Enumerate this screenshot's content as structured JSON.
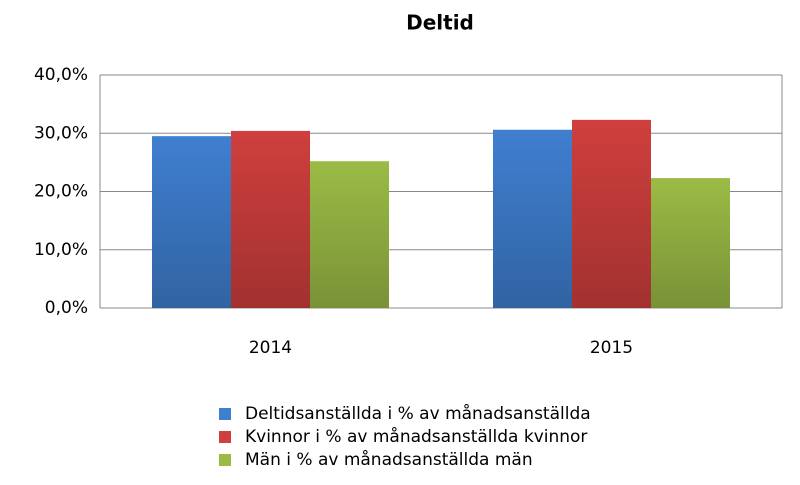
{
  "chart_data": {
    "type": "bar",
    "title": "Deltid",
    "categories": [
      "2014",
      "2015"
    ],
    "series": [
      {
        "name": "Deltidsanställda i % av månadsanställda",
        "color": "#3f7fd0",
        "values": [
          29.5,
          30.6
        ]
      },
      {
        "name": "Kvinnor i % av månadsanställda kvinnor",
        "color": "#cf3f3d",
        "values": [
          30.4,
          32.3
        ]
      },
      {
        "name": "Män i % av månadsanställda män",
        "color": "#9bbb45",
        "values": [
          25.2,
          22.3
        ]
      }
    ],
    "ylim": [
      0,
      40
    ],
    "yticks": [
      {
        "value": 0,
        "label": "0,0%"
      },
      {
        "value": 10,
        "label": "10,0%"
      },
      {
        "value": 20,
        "label": "20,0%"
      },
      {
        "value": 30,
        "label": "30,0%"
      },
      {
        "value": 40,
        "label": "40,0%"
      }
    ],
    "grid": true,
    "legend": "bottom"
  }
}
